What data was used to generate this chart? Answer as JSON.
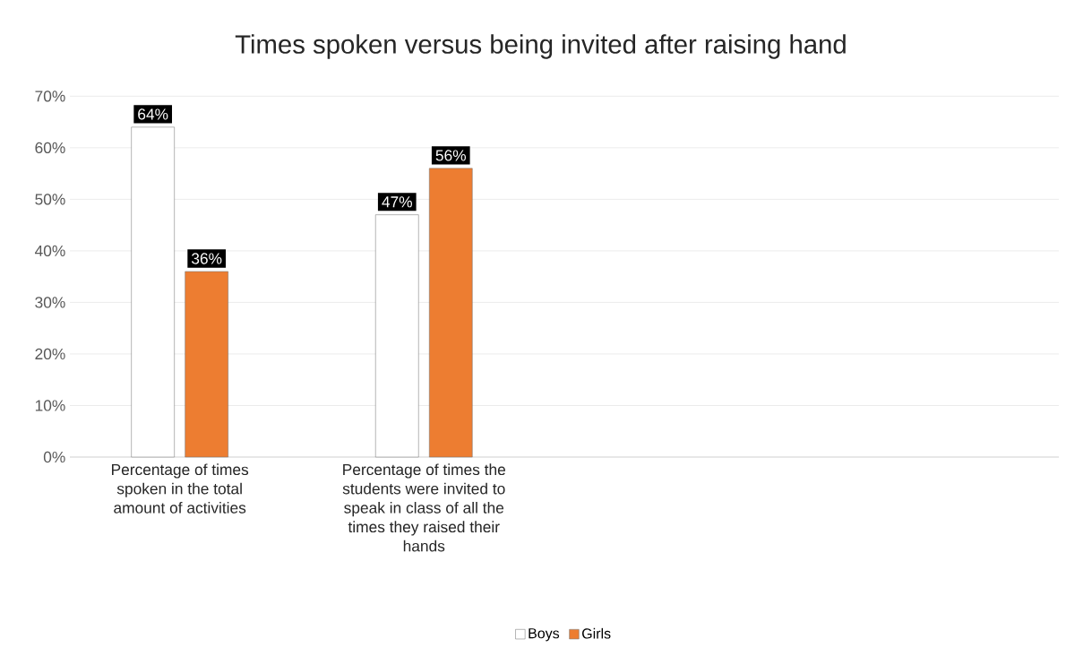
{
  "chart_data": {
    "type": "bar",
    "title": "Times spoken versus being invited after raising hand",
    "categories": [
      "Percentage of times spoken in the total amount of activities",
      "Percentage of times the students were invited to speak in class of all the times they raised their hands",
      null,
      null
    ],
    "series": [
      {
        "name": "Boys",
        "color": "#ffffff",
        "values": [
          64,
          47,
          null,
          null
        ],
        "value_labels": [
          "64%",
          "47%",
          null,
          null
        ]
      },
      {
        "name": "Girls",
        "color": "#ed7d31",
        "values": [
          36,
          56,
          null,
          null
        ],
        "value_labels": [
          "36%",
          "56%",
          null,
          null
        ]
      }
    ],
    "ylim": [
      0,
      70
    ],
    "yticks": [
      {
        "value": 0,
        "label": "0%"
      },
      {
        "value": 10,
        "label": "10%"
      },
      {
        "value": 20,
        "label": "20%"
      },
      {
        "value": 30,
        "label": "30%"
      },
      {
        "value": 40,
        "label": "40%"
      },
      {
        "value": 50,
        "label": "50%"
      },
      {
        "value": 60,
        "label": "60%"
      },
      {
        "value": 70,
        "label": "70%"
      }
    ],
    "grid": "y",
    "legend": "bottom"
  }
}
